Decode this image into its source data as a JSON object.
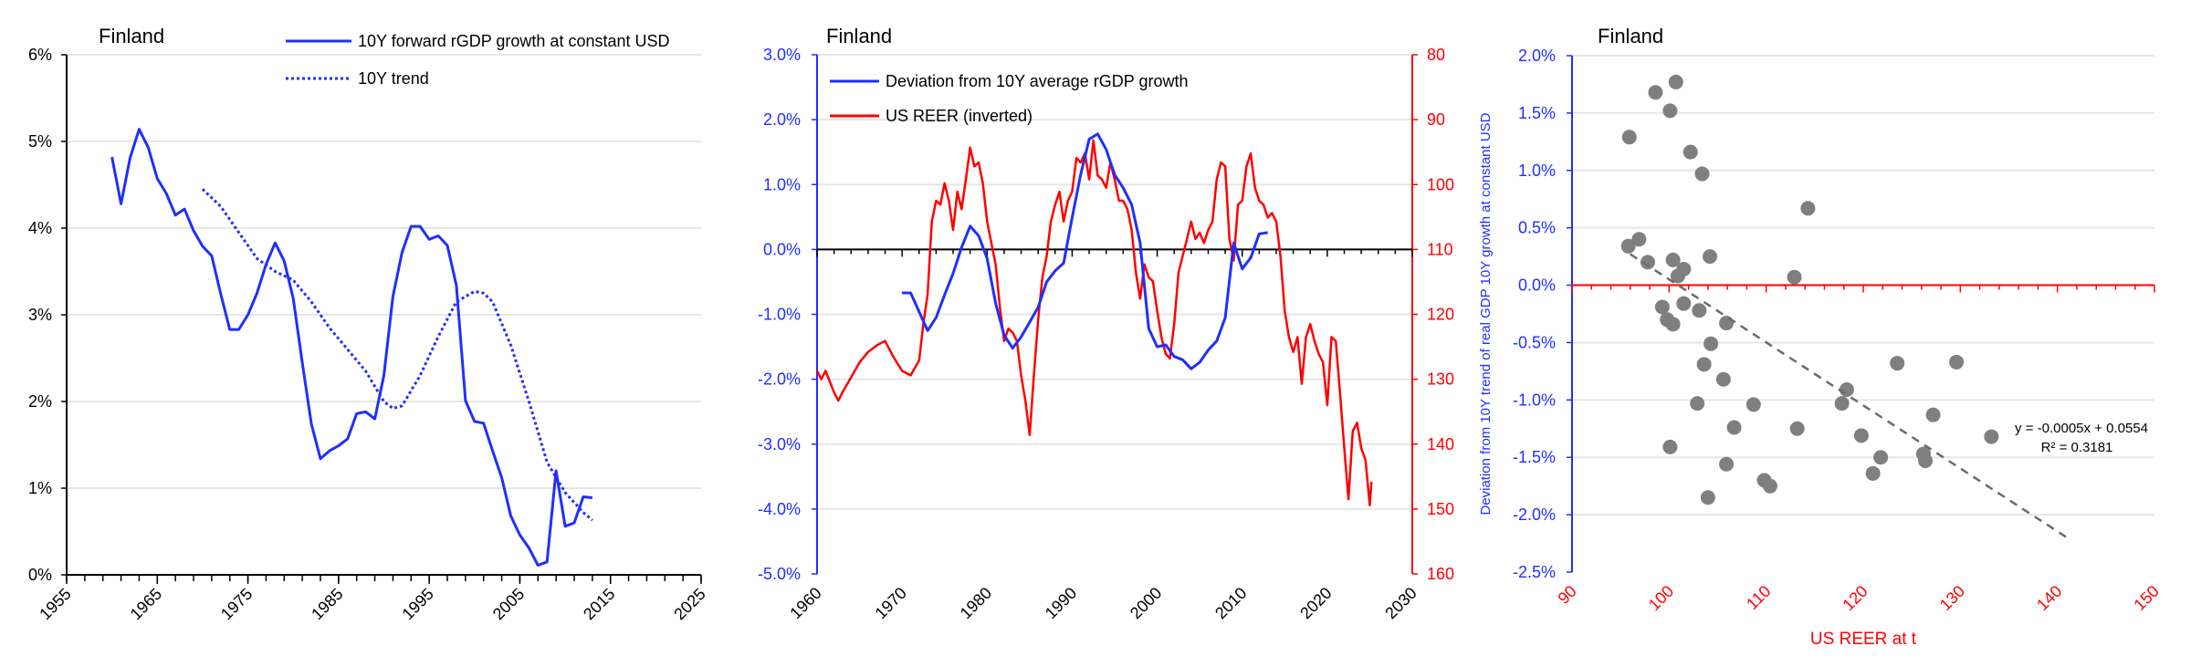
{
  "colors": {
    "blue": "#1f2fff",
    "red": "#ff0000",
    "grid": "#e6e6e6",
    "scatter": "#7f7f7f",
    "trendline": "#6b6b6b"
  },
  "chart_data": [
    {
      "type": "line",
      "title": "Finland",
      "xlabel": "",
      "ylabel": "",
      "xlim": [
        1955,
        2025
      ],
      "ylim": [
        0,
        6
      ],
      "grid": true,
      "legend_placement": "top-right",
      "xticks": [
        {
          "value": 1955,
          "label": "1955"
        },
        {
          "value": 1965,
          "label": "1965"
        },
        {
          "value": 1975,
          "label": "1975"
        },
        {
          "value": 1985,
          "label": "1985"
        },
        {
          "value": 1995,
          "label": "1995"
        },
        {
          "value": 2005,
          "label": "2005"
        },
        {
          "value": 2015,
          "label": "2015"
        },
        {
          "value": 2025,
          "label": "2025"
        }
      ],
      "yticks": [
        {
          "value": 0,
          "label": "0%"
        },
        {
          "value": 1,
          "label": "1%"
        },
        {
          "value": 2,
          "label": "2%"
        },
        {
          "value": 3,
          "label": "3%"
        },
        {
          "value": 4,
          "label": "4%"
        },
        {
          "value": 5,
          "label": "5%"
        },
        {
          "value": 6,
          "label": "6%"
        }
      ],
      "series": [
        {
          "name": "10Y forward rGDP growth at constant USD",
          "style": "solid",
          "color": "#1f2fff",
          "x": [
            1960,
            1961,
            1962,
            1963,
            1964,
            1965,
            1966,
            1967,
            1968,
            1969,
            1970,
            1971,
            1972,
            1973,
            1974,
            1975,
            1976,
            1977,
            1978,
            1979,
            1980,
            1981,
            1982,
            1983,
            1984,
            1985,
            1986,
            1987,
            1988,
            1989,
            1990,
            1991,
            1992,
            1993,
            1994,
            1995,
            1996,
            1997,
            1998,
            1999,
            2000,
            2001,
            2002,
            2003,
            2004,
            2005,
            2006,
            2007,
            2008,
            2009,
            2010,
            2011,
            2012,
            2013
          ],
          "y": [
            4.82,
            4.28,
            4.81,
            5.14,
            4.93,
            4.57,
            4.4,
            4.15,
            4.22,
            3.97,
            3.79,
            3.68,
            3.24,
            2.83,
            2.83,
            3.0,
            3.25,
            3.58,
            3.83,
            3.62,
            3.19,
            2.45,
            1.74,
            1.34,
            1.43,
            1.49,
            1.57,
            1.86,
            1.88,
            1.8,
            2.3,
            3.21,
            3.72,
            4.02,
            4.02,
            3.87,
            3.91,
            3.8,
            3.34,
            2.01,
            1.77,
            1.75,
            1.43,
            1.12,
            0.68,
            0.46,
            0.31,
            0.11,
            0.15,
            1.2,
            0.56,
            0.6,
            0.9,
            0.89
          ]
        },
        {
          "name": "10Y trend",
          "style": "dotted",
          "color": "#1f2fff",
          "x": [
            1970,
            1972,
            1974,
            1976,
            1978,
            1980,
            1982,
            1984,
            1986,
            1988,
            1990,
            1991,
            1992,
            1994,
            1996,
            1998,
            2000,
            2001,
            2002,
            2004,
            2006,
            2008,
            2010,
            2012,
            2013
          ],
          "y": [
            4.45,
            4.25,
            3.95,
            3.65,
            3.5,
            3.4,
            3.15,
            2.85,
            2.6,
            2.35,
            2.0,
            1.92,
            1.95,
            2.3,
            2.75,
            3.15,
            3.27,
            3.25,
            3.15,
            2.65,
            2.0,
            1.3,
            0.95,
            0.72,
            0.63
          ]
        }
      ]
    },
    {
      "type": "line",
      "title": "Finland",
      "xlabel": "",
      "ylabel": "",
      "y2label": "",
      "xlim": [
        1960,
        2030
      ],
      "ylim": [
        -5,
        3
      ],
      "y2lim": [
        80,
        160
      ],
      "y2_inverted": true,
      "grid": true,
      "legend_placement": "top-left",
      "xticks": [
        {
          "value": 1960,
          "label": "1960"
        },
        {
          "value": 1970,
          "label": "1970"
        },
        {
          "value": 1980,
          "label": "1980"
        },
        {
          "value": 1990,
          "label": "1990"
        },
        {
          "value": 2000,
          "label": "2000"
        },
        {
          "value": 2010,
          "label": "2010"
        },
        {
          "value": 2020,
          "label": "2020"
        },
        {
          "value": 2030,
          "label": "2030"
        }
      ],
      "yticks": [
        {
          "value": 3,
          "label": "3.0%"
        },
        {
          "value": 2,
          "label": "2.0%"
        },
        {
          "value": 1,
          "label": "1.0%"
        },
        {
          "value": 0,
          "label": "0.0%"
        },
        {
          "value": -1,
          "label": "-1.0%"
        },
        {
          "value": -2,
          "label": "-2.0%"
        },
        {
          "value": -3,
          "label": "-3.0%"
        },
        {
          "value": -4,
          "label": "-4.0%"
        },
        {
          "value": -5,
          "label": "-5.0%"
        }
      ],
      "y2ticks": [
        {
          "value": 80,
          "label": "80"
        },
        {
          "value": 90,
          "label": "90"
        },
        {
          "value": 100,
          "label": "100"
        },
        {
          "value": 110,
          "label": "110"
        },
        {
          "value": 120,
          "label": "120"
        },
        {
          "value": 130,
          "label": "130"
        },
        {
          "value": 140,
          "label": "140"
        },
        {
          "value": 150,
          "label": "150"
        },
        {
          "value": 160,
          "label": "160"
        }
      ],
      "series": [
        {
          "name": "Deviation from 10Y average rGDP growth",
          "axis": "left",
          "color": "#1f2fff",
          "x": [
            1970,
            1971,
            1973,
            1974,
            1975,
            1976,
            1977,
            1978,
            1979,
            1980,
            1981,
            1982,
            1983,
            1984,
            1985,
            1986,
            1987,
            1988,
            1989,
            1990,
            1991,
            1992,
            1993,
            1994,
            1995,
            1996,
            1997,
            1998,
            1999,
            2000,
            2001,
            2002,
            2003,
            2004,
            2005,
            2006,
            2007,
            2008,
            2009,
            2010,
            2011,
            2012,
            2013
          ],
          "y": [
            -0.67,
            -0.67,
            -1.25,
            -1.05,
            -0.7,
            -0.37,
            0.03,
            0.36,
            0.21,
            -0.14,
            -0.83,
            -1.32,
            -1.52,
            -1.35,
            -1.12,
            -0.89,
            -0.5,
            -0.33,
            -0.21,
            0.49,
            1.15,
            1.7,
            1.78,
            1.54,
            1.15,
            0.95,
            0.69,
            0.1,
            -1.22,
            -1.5,
            -1.47,
            -1.65,
            -1.7,
            -1.84,
            -1.74,
            -1.55,
            -1.41,
            -1.05,
            0.1,
            -0.3,
            -0.13,
            0.24,
            0.26
          ]
        },
        {
          "name": "US REER (inverted)",
          "axis": "right",
          "color": "#ff0000",
          "x": [
            1960,
            1960.5,
            1961,
            1962,
            1962.5,
            1963,
            1964,
            1965,
            1966,
            1967,
            1968,
            1969,
            1970,
            1971,
            1972,
            1972.5,
            1973,
            1973.5,
            1974,
            1974.5,
            1975,
            1975.5,
            1976,
            1976.5,
            1977,
            1977.5,
            1978,
            1978.5,
            1979,
            1979.5,
            1980,
            1980.5,
            1981,
            1981.5,
            1982,
            1982.5,
            1983,
            1983.5,
            1984,
            1984.5,
            1985,
            1985.5,
            1986,
            1986.5,
            1987,
            1987.5,
            1988,
            1988.5,
            1989,
            1989.5,
            1990,
            1990.5,
            1991,
            1991.5,
            1992,
            1992.5,
            1993,
            1993.5,
            1994,
            1994.5,
            1995,
            1995.5,
            1996,
            1996.5,
            1997,
            1997.5,
            1998,
            1998.5,
            1999,
            1999.5,
            2000,
            2000.5,
            2001,
            2001.5,
            2002,
            2002.5,
            2003,
            2003.5,
            2004,
            2004.5,
            2005,
            2005.5,
            2006,
            2006.5,
            2007,
            2007.5,
            2008,
            2008.5,
            2009,
            2009.5,
            2010,
            2010.5,
            2011,
            2011.5,
            2012,
            2012.5,
            2013,
            2013.5,
            2014,
            2014.5,
            2015,
            2015.5,
            2016,
            2016.5,
            2017,
            2017.5,
            2018,
            2018.5,
            2019,
            2019.5,
            2020,
            2020.5,
            2021,
            2021.5,
            2022,
            2022.5,
            2023,
            2023.5,
            2024,
            2024.5,
            2025,
            2025.2
          ],
          "y": [
            128.7,
            130,
            128.7,
            132,
            133.3,
            132,
            129.7,
            127.4,
            125.8,
            124.8,
            124.1,
            126.6,
            128.7,
            129.4,
            127.1,
            121.5,
            116.9,
            105.7,
            102.5,
            103.1,
            99.8,
            102.5,
            107,
            101.1,
            103.8,
            99.2,
            94.3,
            97.2,
            96.6,
            99.8,
            105.7,
            109,
            112.3,
            118.9,
            124.1,
            122.2,
            122.8,
            124.1,
            129.4,
            133.3,
            138.6,
            129.4,
            120.8,
            114.3,
            111,
            105.7,
            103.1,
            101.1,
            105.7,
            102.5,
            101.1,
            95.9,
            96.6,
            95.2,
            99.2,
            93.2,
            98.6,
            99.2,
            100.5,
            96.6,
            99.2,
            102.5,
            102.5,
            103.8,
            107,
            113.6,
            117.6,
            112.3,
            114.3,
            114.9,
            119.5,
            123.5,
            126.1,
            126.8,
            121.5,
            113.6,
            111,
            108.4,
            105.7,
            108.4,
            107.4,
            109,
            107,
            105.7,
            99.2,
            96.6,
            97.2,
            108.4,
            111.7,
            103.1,
            102.5,
            97.2,
            95.2,
            100.5,
            102.5,
            103.1,
            105.1,
            104.4,
            105.7,
            111,
            119.5,
            123.5,
            125.8,
            123.5,
            130.7,
            123.5,
            121.5,
            124.1,
            126.1,
            127.4,
            134,
            123.5,
            124.1,
            132,
            140.6,
            148.5,
            138,
            136.7,
            140.6,
            142.5,
            149.4,
            145.8
          ]
        }
      ]
    },
    {
      "type": "scatter",
      "title": "Finland",
      "xlabel": "US REER at t",
      "ylabel": "Deviation from 10Y trend of real GDP 10Y growth at constant USD",
      "xlim": [
        90,
        150
      ],
      "ylim": [
        -2.5,
        2.0
      ],
      "grid": true,
      "xticks": [
        {
          "value": 90,
          "label": "90"
        },
        {
          "value": 100,
          "label": "100"
        },
        {
          "value": 110,
          "label": "110"
        },
        {
          "value": 120,
          "label": "120"
        },
        {
          "value": 130,
          "label": "130"
        },
        {
          "value": 140,
          "label": "140"
        },
        {
          "value": 150,
          "label": "150"
        }
      ],
      "yticks": [
        {
          "value": 2.0,
          "label": "2.0%"
        },
        {
          "value": 1.5,
          "label": "1.5%"
        },
        {
          "value": 1.0,
          "label": "1.0%"
        },
        {
          "value": 0.5,
          "label": "0.5%"
        },
        {
          "value": 0,
          "label": "0.0%"
        },
        {
          "value": -0.5,
          "label": "-0.5%"
        },
        {
          "value": -1.0,
          "label": "-1.0%"
        },
        {
          "value": -1.5,
          "label": "-1.5%"
        },
        {
          "value": -2.0,
          "label": "-2.0%"
        },
        {
          "value": -2.5,
          "label": "-2.5%"
        }
      ],
      "points": {
        "x": [
          95.9,
          98.6,
          100.7,
          100.1,
          102.2,
          103.4,
          114.3,
          95.8,
          96.9,
          97.8,
          100.4,
          101.5,
          100.9,
          104.2,
          112.9,
          99.3,
          99.8,
          100.4,
          101.5,
          103.1,
          105.9,
          104.3,
          103.6,
          105.6,
          102.9,
          108.7,
          106.7,
          100.1,
          105.9,
          104.0,
          109.8,
          110.4,
          113.2,
          118.3,
          117.8,
          123.5,
          129.6,
          127.2,
          119.8,
          121.8,
          121.0,
          126.2,
          126.4,
          133.2
        ],
        "y": [
          1.29,
          1.68,
          1.77,
          1.52,
          1.16,
          0.97,
          0.67,
          0.34,
          0.4,
          0.2,
          0.22,
          0.14,
          0.08,
          0.25,
          0.07,
          -0.19,
          -0.3,
          -0.34,
          -0.16,
          -0.22,
          -0.33,
          -0.51,
          -0.69,
          -0.82,
          -1.03,
          -1.04,
          -1.24,
          -1.41,
          -1.56,
          -1.85,
          -1.7,
          -1.75,
          -1.25,
          -0.91,
          -1.03,
          -0.68,
          -0.67,
          -1.13,
          -1.31,
          -1.5,
          -1.64,
          -1.47,
          -1.53,
          -1.32
        ]
      },
      "trendline": {
        "x": [
          96,
          141
        ],
        "y": [
          0.27,
          -2.2
        ],
        "equation": "y = -0.0005x + 0.0554",
        "r2": "R² = 0.3181"
      }
    }
  ]
}
